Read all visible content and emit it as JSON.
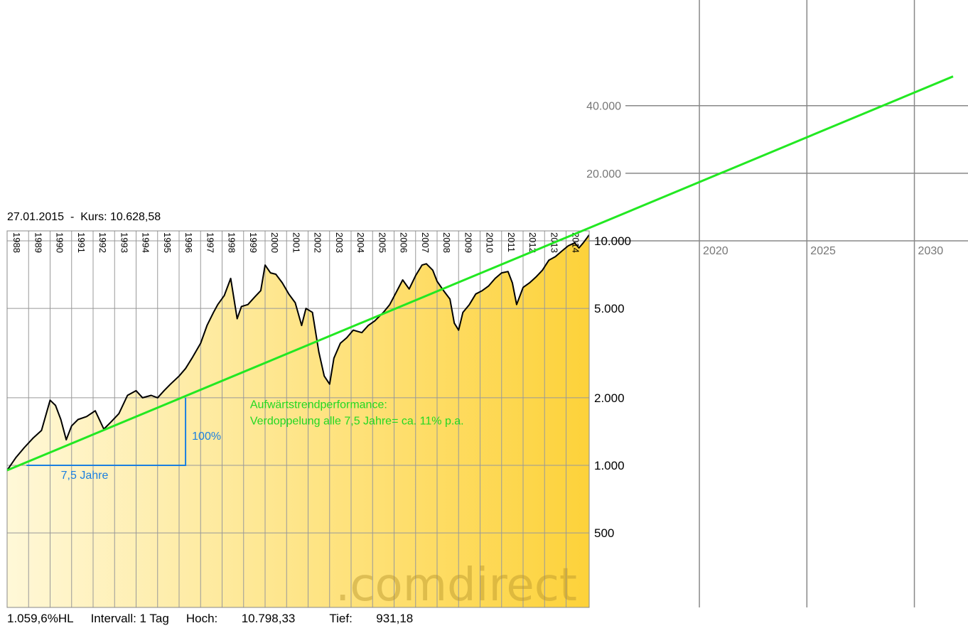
{
  "header": {
    "date": "27.01.2015",
    "separator": "-",
    "kurs_label": "Kurs:",
    "kurs_value": "10.628,58"
  },
  "footer": {
    "hl": "1.059,6%HL",
    "interval": "Intervall: 1 Tag",
    "high_label": "Hoch:",
    "high_value": "10.798,33",
    "low_label": "Tief:",
    "low_value": "931,18"
  },
  "watermark": ".comdirect",
  "colors": {
    "trend_line": "#22e822",
    "annotation_blue": "#1a7fe0",
    "annotation_green": "#22d822",
    "fill_light": "#fff8d8",
    "fill_dark": "#fdd23a",
    "grid": "#999999"
  },
  "chart_data": {
    "type": "area",
    "y_scale": "log",
    "ylim": [
      300,
      60000
    ],
    "xlim": [
      1988,
      2032
    ],
    "y_ticks": [
      {
        "value": 500,
        "label": "500"
      },
      {
        "value": 1000,
        "label": "1.000"
      },
      {
        "value": 2000,
        "label": "2.000"
      },
      {
        "value": 5000,
        "label": "5.000"
      },
      {
        "value": 10000,
        "label": "10.000"
      },
      {
        "value": 20000,
        "label": "20.000"
      },
      {
        "value": 40000,
        "label": "40.000"
      }
    ],
    "x_year_labels": [
      "1988",
      "1989",
      "1990",
      "1991",
      "1992",
      "1993",
      "1994",
      "1995",
      "1996",
      "1997",
      "1998",
      "1999",
      "2000",
      "2001",
      "2002",
      "2003",
      "2004",
      "2005",
      "2006",
      "2007",
      "2008",
      "2009",
      "2010",
      "2011",
      "2012",
      "2013",
      "2014"
    ],
    "future_year_labels": [
      "2020",
      "2025",
      "2030"
    ],
    "series": [
      {
        "x": [
          1988.0,
          1988.4,
          1988.8,
          1989.2,
          1989.6,
          1990.0,
          1990.25,
          1990.5,
          1990.75,
          1991.0,
          1991.3,
          1991.7,
          1992.1,
          1992.5,
          1992.8,
          1993.2,
          1993.6,
          1994.0,
          1994.3,
          1994.7,
          1995.0,
          1995.3,
          1995.6,
          1996.0,
          1996.3,
          1996.6,
          1997.0,
          1997.3,
          1997.6,
          1997.8,
          1998.1,
          1998.4,
          1998.7,
          1998.9,
          1999.2,
          1999.5,
          1999.8,
          2000.0,
          2000.25,
          2000.5,
          2000.8,
          2001.1,
          2001.4,
          2001.7,
          2001.9,
          2002.2,
          2002.5,
          2002.75,
          2003.0,
          2003.2,
          2003.5,
          2003.8,
          2004.1,
          2004.5,
          2004.8,
          2005.1,
          2005.5,
          2005.8,
          2006.1,
          2006.4,
          2006.7,
          2007.0,
          2007.3,
          2007.5,
          2007.8,
          2008.0,
          2008.3,
          2008.6,
          2008.8,
          2009.0,
          2009.2,
          2009.5,
          2009.8,
          2010.1,
          2010.4,
          2010.7,
          2011.0,
          2011.3,
          2011.5,
          2011.7,
          2012.0,
          2012.3,
          2012.6,
          2012.9,
          2013.2,
          2013.5,
          2013.8,
          2014.1,
          2014.4,
          2014.6,
          2014.8,
          2015.0,
          2015.07
        ],
        "values": [
          950,
          1080,
          1200,
          1320,
          1430,
          1950,
          1850,
          1600,
          1300,
          1500,
          1600,
          1650,
          1750,
          1450,
          1550,
          1700,
          2050,
          2150,
          2000,
          2050,
          2000,
          2150,
          2300,
          2500,
          2700,
          3000,
          3500,
          4200,
          4800,
          5200,
          5700,
          6800,
          4500,
          5100,
          5200,
          5600,
          6000,
          7800,
          7200,
          7100,
          6500,
          5800,
          5300,
          4200,
          5000,
          4800,
          3200,
          2500,
          2300,
          3000,
          3500,
          3700,
          4000,
          3900,
          4200,
          4400,
          4800,
          5200,
          5900,
          6700,
          6100,
          7000,
          7800,
          7900,
          7400,
          6600,
          6000,
          5500,
          4300,
          4000,
          4800,
          5200,
          5800,
          6000,
          6300,
          6800,
          7200,
          7300,
          6500,
          5200,
          6200,
          6500,
          6900,
          7400,
          8200,
          8500,
          9000,
          9500,
          9800,
          9300,
          9800,
          10400,
          10628.58
        ]
      },
      {
        "name": "",
        "x": [
          1988.0,
          2032.0
        ],
        "values": [
          950,
          54000
        ]
      }
    ],
    "annotations": [
      {
        "text": "Aufwärtstrendperformance:",
        "x": 1999.3,
        "y": 1800
      },
      {
        "text": "Verdoppelung alle 7,5 Jahre= ca. 11% p.a.",
        "x": 1999.3,
        "y": 1520
      },
      {
        "text": "100%",
        "x": 1996.6,
        "y": 1300
      },
      {
        "text": "7,5 Jahre",
        "x": 1990.5,
        "y": 870
      }
    ],
    "doubling_bracket": {
      "x_start": 1988.9,
      "x_end": 1996.3,
      "y_low": 1000,
      "y_high": 2000
    },
    "grid": true
  }
}
